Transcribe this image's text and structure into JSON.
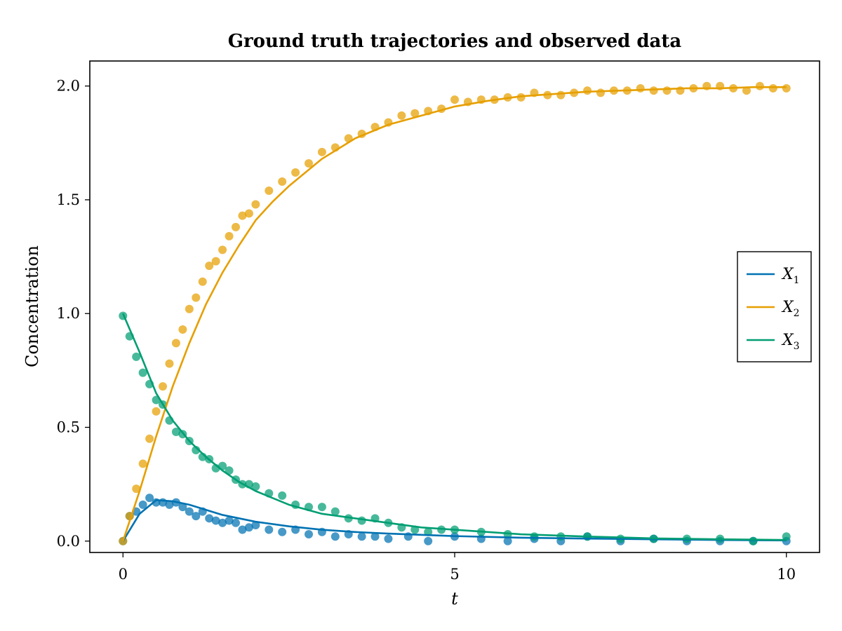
{
  "chart_data": {
    "type": "line",
    "title": "Ground truth trajectories and observed data",
    "xlabel": "t",
    "ylabel": "Concentration",
    "xlim": [
      -0.5,
      10.5
    ],
    "ylim": [
      -0.05,
      2.11
    ],
    "xticks": [
      0,
      5,
      10
    ],
    "xtick_labels": [
      "0",
      "5",
      "10"
    ],
    "yticks": [
      0.0,
      0.5,
      1.0,
      1.5,
      2.0
    ],
    "ytick_labels": [
      "0.0",
      "0.5",
      "1.0",
      "1.5",
      "2.0"
    ],
    "grid": false,
    "legend": {
      "position": "right",
      "entries": [
        {
          "series": 0,
          "base": "X",
          "sub": "1"
        },
        {
          "series": 1,
          "base": "X",
          "sub": "2"
        },
        {
          "series": 2,
          "base": "X",
          "sub": "3"
        }
      ]
    },
    "series": [
      {
        "color": "#0072b2",
        "x": [
          0,
          0.25,
          0.5,
          0.75,
          1,
          1.5,
          2,
          2.5,
          3,
          3.5,
          4,
          5,
          6,
          7,
          8,
          9,
          10
        ],
        "y": [
          0.0,
          0.12,
          0.18,
          0.175,
          0.16,
          0.115,
          0.085,
          0.065,
          0.05,
          0.04,
          0.033,
          0.022,
          0.015,
          0.011,
          0.008,
          0.005,
          0.003
        ],
        "observed_x": [
          0,
          0.1,
          0.2,
          0.3,
          0.4,
          0.5,
          0.6,
          0.7,
          0.8,
          0.9,
          1.0,
          1.1,
          1.2,
          1.3,
          1.4,
          1.5,
          1.6,
          1.7,
          1.8,
          1.9,
          2.0,
          2.2,
          2.4,
          2.6,
          2.8,
          3.0,
          3.2,
          3.4,
          3.6,
          3.8,
          4.0,
          4.3,
          4.6,
          5.0,
          5.4,
          5.8,
          6.2,
          6.6,
          7.0,
          7.5,
          8.0,
          8.5,
          9.0,
          9.5,
          10.0
        ],
        "observed_y": [
          0.0,
          0.11,
          0.13,
          0.16,
          0.19,
          0.17,
          0.17,
          0.16,
          0.17,
          0.15,
          0.13,
          0.11,
          0.13,
          0.1,
          0.09,
          0.08,
          0.09,
          0.08,
          0.05,
          0.06,
          0.07,
          0.05,
          0.04,
          0.05,
          0.03,
          0.04,
          0.02,
          0.03,
          0.02,
          0.02,
          0.01,
          0.02,
          0.0,
          0.02,
          0.01,
          0.0,
          0.01,
          0.0,
          0.02,
          0.0,
          0.01,
          0.0,
          0.0,
          0.0,
          0.0
        ]
      },
      {
        "color": "#e69f00",
        "x": [
          0,
          0.25,
          0.5,
          0.75,
          1,
          1.25,
          1.5,
          1.75,
          2,
          2.25,
          2.5,
          3,
          3.5,
          4,
          4.5,
          5,
          5.5,
          6,
          6.5,
          7,
          7.5,
          8,
          8.5,
          9,
          9.5,
          10
        ],
        "y": [
          0.0,
          0.22,
          0.46,
          0.68,
          0.87,
          1.04,
          1.18,
          1.3,
          1.41,
          1.49,
          1.56,
          1.68,
          1.77,
          1.83,
          1.87,
          1.91,
          1.935,
          1.955,
          1.965,
          1.975,
          1.98,
          1.985,
          1.99,
          1.99,
          1.995,
          1.995
        ],
        "observed_x": [
          0,
          0.1,
          0.2,
          0.3,
          0.4,
          0.5,
          0.6,
          0.7,
          0.8,
          0.9,
          1.0,
          1.1,
          1.2,
          1.3,
          1.4,
          1.5,
          1.6,
          1.7,
          1.8,
          1.9,
          2.0,
          2.2,
          2.4,
          2.6,
          2.8,
          3.0,
          3.2,
          3.4,
          3.6,
          3.8,
          4.0,
          4.2,
          4.4,
          4.6,
          4.8,
          5.0,
          5.2,
          5.4,
          5.6,
          5.8,
          6.0,
          6.2,
          6.4,
          6.6,
          6.8,
          7.0,
          7.2,
          7.4,
          7.6,
          7.8,
          8.0,
          8.2,
          8.4,
          8.6,
          8.8,
          9.0,
          9.2,
          9.4,
          9.6,
          9.8,
          10.0
        ],
        "observed_y": [
          0.0,
          0.11,
          0.23,
          0.34,
          0.45,
          0.57,
          0.68,
          0.78,
          0.87,
          0.93,
          1.02,
          1.07,
          1.14,
          1.21,
          1.23,
          1.28,
          1.34,
          1.38,
          1.43,
          1.44,
          1.48,
          1.54,
          1.58,
          1.62,
          1.66,
          1.71,
          1.73,
          1.77,
          1.79,
          1.82,
          1.84,
          1.87,
          1.88,
          1.89,
          1.9,
          1.94,
          1.93,
          1.94,
          1.94,
          1.95,
          1.95,
          1.97,
          1.96,
          1.96,
          1.97,
          1.98,
          1.97,
          1.98,
          1.98,
          1.99,
          1.98,
          1.98,
          1.98,
          1.99,
          2.0,
          2.0,
          1.99,
          1.98,
          2.0,
          1.99,
          1.99
        ]
      },
      {
        "color": "#009e73",
        "x": [
          0,
          0.25,
          0.5,
          0.75,
          1,
          1.25,
          1.5,
          1.75,
          2,
          2.5,
          3,
          3.5,
          4,
          4.5,
          5,
          5.5,
          6,
          7,
          8,
          9,
          10
        ],
        "y": [
          1.0,
          0.83,
          0.65,
          0.53,
          0.44,
          0.37,
          0.31,
          0.26,
          0.22,
          0.16,
          0.12,
          0.1,
          0.08,
          0.06,
          0.05,
          0.04,
          0.03,
          0.02,
          0.012,
          0.008,
          0.005
        ],
        "observed_x": [
          0,
          0.1,
          0.2,
          0.3,
          0.4,
          0.5,
          0.6,
          0.7,
          0.8,
          0.9,
          1.0,
          1.1,
          1.2,
          1.3,
          1.4,
          1.5,
          1.6,
          1.7,
          1.8,
          1.9,
          2.0,
          2.2,
          2.4,
          2.6,
          2.8,
          3.0,
          3.2,
          3.4,
          3.6,
          3.8,
          4.0,
          4.2,
          4.4,
          4.6,
          4.8,
          5.0,
          5.4,
          5.8,
          6.2,
          6.6,
          7.0,
          7.5,
          8.0,
          8.5,
          9.0,
          9.5,
          10.0
        ],
        "observed_y": [
          0.99,
          0.9,
          0.81,
          0.74,
          0.69,
          0.62,
          0.6,
          0.53,
          0.48,
          0.47,
          0.44,
          0.4,
          0.37,
          0.36,
          0.32,
          0.33,
          0.31,
          0.27,
          0.25,
          0.25,
          0.24,
          0.21,
          0.2,
          0.16,
          0.15,
          0.15,
          0.13,
          0.1,
          0.09,
          0.1,
          0.08,
          0.06,
          0.05,
          0.04,
          0.05,
          0.05,
          0.04,
          0.03,
          0.02,
          0.02,
          0.02,
          0.01,
          0.01,
          0.01,
          0.01,
          0.0,
          0.02
        ]
      }
    ]
  }
}
